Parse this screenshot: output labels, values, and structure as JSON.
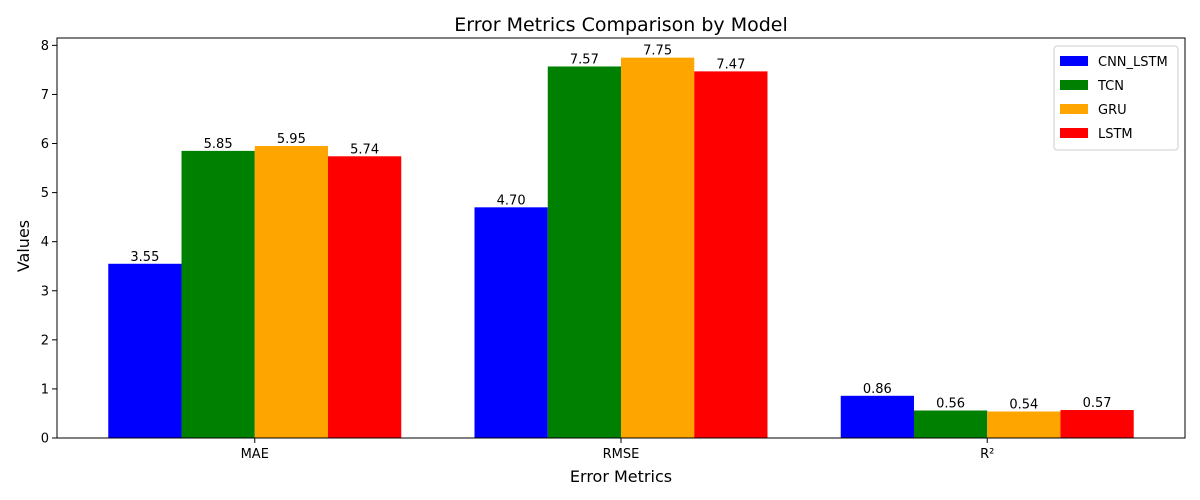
{
  "chart_data": {
    "type": "bar",
    "title": "Error Metrics Comparison by Model",
    "xlabel": "Error Metrics",
    "ylabel": "Values",
    "categories": [
      "MAE",
      "RMSE",
      "R²"
    ],
    "ylim": [
      0,
      8.15
    ],
    "yticks": [
      0,
      1,
      2,
      3,
      4,
      5,
      6,
      7,
      8
    ],
    "legend_position": "top-right",
    "grid": false,
    "series": [
      {
        "name": "CNN_LSTM",
        "color": "#0000ff",
        "values": [
          3.55,
          4.7,
          0.86
        ],
        "labels": [
          "3.55",
          "4.70",
          "0.86"
        ]
      },
      {
        "name": "TCN",
        "color": "#008000",
        "values": [
          5.85,
          7.57,
          0.56
        ],
        "labels": [
          "5.85",
          "7.57",
          "0.56"
        ]
      },
      {
        "name": "GRU",
        "color": "#ffa500",
        "values": [
          5.95,
          7.75,
          0.54
        ],
        "labels": [
          "5.95",
          "7.75",
          "0.54"
        ]
      },
      {
        "name": "LSTM",
        "color": "#ff0000",
        "values": [
          5.74,
          7.47,
          0.57
        ],
        "labels": [
          "5.74",
          "7.47",
          "0.57"
        ]
      }
    ]
  }
}
